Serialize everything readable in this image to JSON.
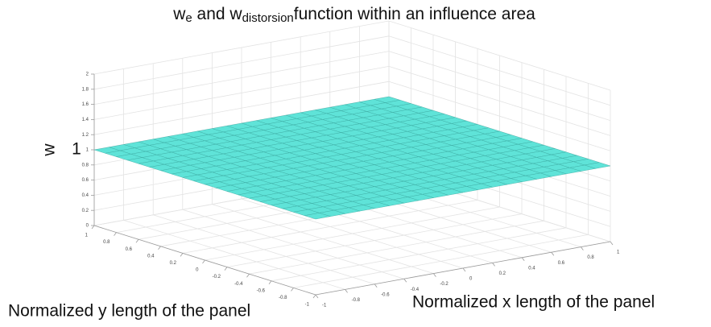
{
  "chart_data": {
    "type": "surface",
    "title": [
      {
        "text": "w"
      },
      {
        "text": "e",
        "sub": true
      },
      {
        "text": " and w"
      },
      {
        "text": "distorsion",
        "sub": true
      },
      {
        "text": "function within an influence area"
      }
    ],
    "xlabel": "Normalized x length of the panel",
    "ylabel": "Normalized y length of the panel",
    "zlabel": "w",
    "annotation": "1",
    "color": "#5fe3d8",
    "edge_color": "#3aa9a1",
    "grid": true,
    "x": [
      -1,
      -0.9,
      -0.8,
      -0.7,
      -0.6,
      -0.5,
      -0.4,
      -0.3,
      -0.2,
      -0.1,
      0,
      0.1,
      0.2,
      0.3,
      0.4,
      0.5,
      0.6,
      0.7,
      0.8,
      0.9,
      1
    ],
    "y": [
      -1,
      -0.9,
      -0.8,
      -0.7,
      -0.6,
      -0.5,
      -0.4,
      -0.3,
      -0.2,
      -0.1,
      0,
      0.1,
      0.2,
      0.3,
      0.4,
      0.5,
      0.6,
      0.7,
      0.8,
      0.9,
      1
    ],
    "z": [
      [
        1,
        1,
        1,
        1,
        1,
        1,
        1,
        1,
        1,
        1,
        1,
        1,
        1,
        1,
        1,
        1,
        1,
        1,
        1,
        1,
        1
      ],
      [
        1,
        1,
        1,
        1,
        1,
        1,
        1,
        1,
        1,
        1,
        1,
        1,
        1,
        1,
        1,
        1,
        1,
        1,
        1,
        1,
        1
      ],
      [
        1,
        1,
        1,
        1,
        1,
        1,
        1,
        1,
        1,
        1,
        1,
        1,
        1,
        1,
        1,
        1,
        1,
        1,
        1,
        1,
        1
      ],
      [
        1,
        1,
        1,
        1,
        1,
        1,
        1,
        1,
        1,
        1,
        1,
        1,
        1,
        1,
        1,
        1,
        1,
        1,
        1,
        1,
        1
      ],
      [
        1,
        1,
        1,
        1,
        1,
        1,
        1,
        1,
        1,
        1,
        1,
        1,
        1,
        1,
        1,
        1,
        1,
        1,
        1,
        1,
        1
      ],
      [
        1,
        1,
        1,
        1,
        1,
        1,
        1,
        1,
        1,
        1,
        1,
        1,
        1,
        1,
        1,
        1,
        1,
        1,
        1,
        1,
        1
      ],
      [
        1,
        1,
        1,
        1,
        1,
        1,
        1,
        1,
        1,
        1,
        1,
        1,
        1,
        1,
        1,
        1,
        1,
        1,
        1,
        1,
        1
      ],
      [
        1,
        1,
        1,
        1,
        1,
        1,
        1,
        1,
        1,
        1,
        1,
        1,
        1,
        1,
        1,
        1,
        1,
        1,
        1,
        1,
        1
      ],
      [
        1,
        1,
        1,
        1,
        1,
        1,
        1,
        1,
        1,
        1,
        1,
        1,
        1,
        1,
        1,
        1,
        1,
        1,
        1,
        1,
        1
      ],
      [
        1,
        1,
        1,
        1,
        1,
        1,
        1,
        1,
        1,
        1,
        1,
        1,
        1,
        1,
        1,
        1,
        1,
        1,
        1,
        1,
        1
      ],
      [
        1,
        1,
        1,
        1,
        1,
        1,
        1,
        1,
        1,
        1,
        1,
        1,
        1,
        1,
        1,
        1,
        1,
        1,
        1,
        1,
        1
      ],
      [
        1,
        1,
        1,
        1,
        1,
        1,
        1,
        1,
        1,
        1,
        1,
        1,
        1,
        1,
        1,
        1,
        1,
        1,
        1,
        1,
        1
      ],
      [
        1,
        1,
        1,
        1,
        1,
        1,
        1,
        1,
        1,
        1,
        1,
        1,
        1,
        1,
        1,
        1,
        1,
        1,
        1,
        1,
        1
      ],
      [
        1,
        1,
        1,
        1,
        1,
        1,
        1,
        1,
        1,
        1,
        1,
        1,
        1,
        1,
        1,
        1,
        1,
        1,
        1,
        1,
        1
      ],
      [
        1,
        1,
        1,
        1,
        1,
        1,
        1,
        1,
        1,
        1,
        1,
        1,
        1,
        1,
        1,
        1,
        1,
        1,
        1,
        1,
        1
      ],
      [
        1,
        1,
        1,
        1,
        1,
        1,
        1,
        1,
        1,
        1,
        1,
        1,
        1,
        1,
        1,
        1,
        1,
        1,
        1,
        1,
        1
      ],
      [
        1,
        1,
        1,
        1,
        1,
        1,
        1,
        1,
        1,
        1,
        1,
        1,
        1,
        1,
        1,
        1,
        1,
        1,
        1,
        1,
        1
      ],
      [
        1,
        1,
        1,
        1,
        1,
        1,
        1,
        1,
        1,
        1,
        1,
        1,
        1,
        1,
        1,
        1,
        1,
        1,
        1,
        1,
        1
      ],
      [
        1,
        1,
        1,
        1,
        1,
        1,
        1,
        1,
        1,
        1,
        1,
        1,
        1,
        1,
        1,
        1,
        1,
        1,
        1,
        1,
        1
      ],
      [
        1,
        1,
        1,
        1,
        1,
        1,
        1,
        1,
        1,
        1,
        1,
        1,
        1,
        1,
        1,
        1,
        1,
        1,
        1,
        1,
        1
      ],
      [
        1,
        1,
        1,
        1,
        1,
        1,
        1,
        1,
        1,
        1,
        1,
        1,
        1,
        1,
        1,
        1,
        1,
        1,
        1,
        1,
        1
      ]
    ],
    "xlim": [
      -1,
      1
    ],
    "ylim": [
      -1,
      1
    ],
    "zlim": [
      0,
      2
    ],
    "xticks": [
      -1,
      -0.8,
      -0.6,
      -0.4,
      -0.2,
      0,
      0.2,
      0.4,
      0.6,
      0.8,
      1
    ],
    "yticks": [
      -1,
      -0.8,
      -0.6,
      -0.4,
      -0.2,
      0,
      0.2,
      0.4,
      0.6,
      0.8,
      1
    ],
    "zticks": [
      0,
      0.2,
      0.4,
      0.6,
      0.8,
      1,
      1.2,
      1.4,
      1.6,
      1.8,
      2
    ]
  }
}
